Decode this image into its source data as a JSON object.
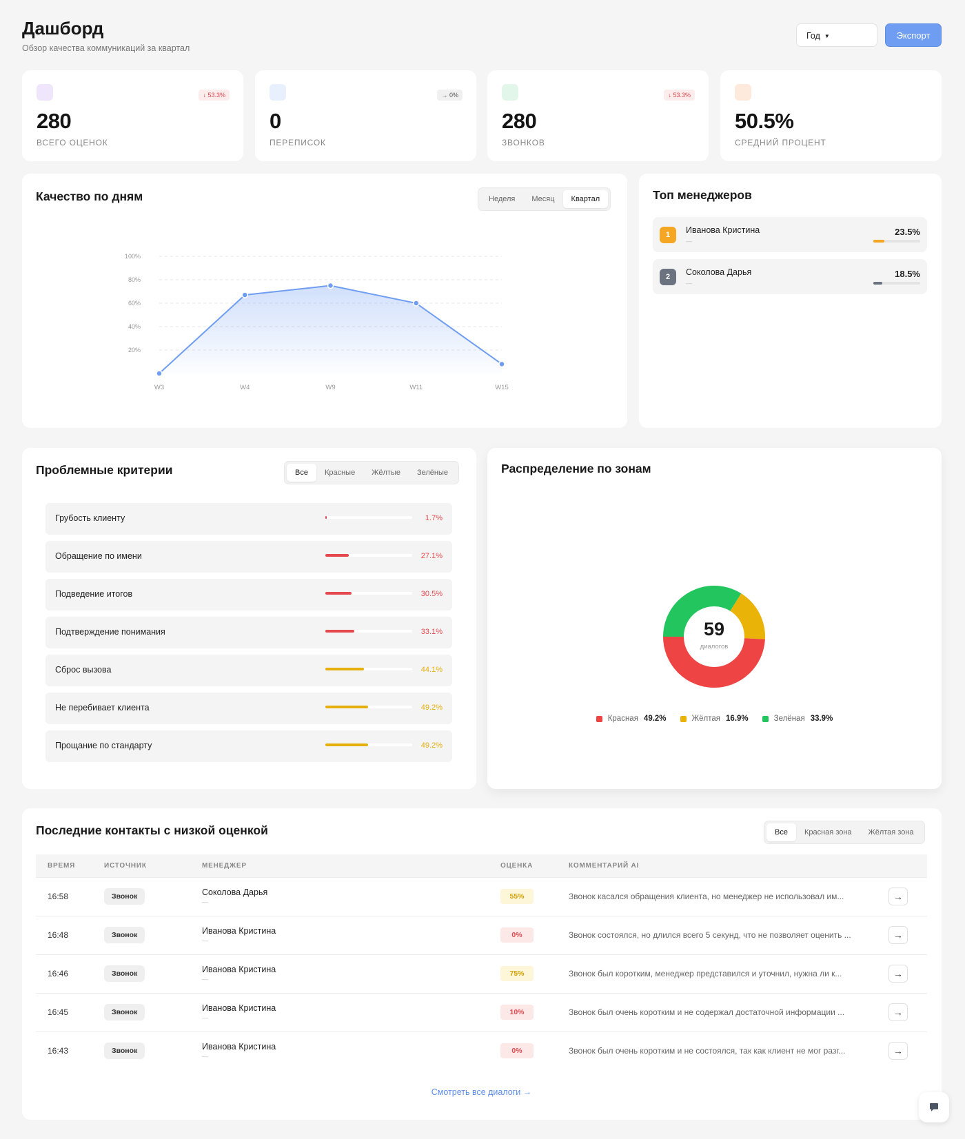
{
  "header": {
    "title": "Дашборд",
    "subtitle": "Обзор качества коммуникаций за квартал",
    "period": "Год",
    "export_label": "Экспорт"
  },
  "stats": [
    {
      "value": "280",
      "label": "ВСЕГО ОЦЕНОК",
      "badge": "↓ 53.3%",
      "icon_color": "#efe6fb"
    },
    {
      "value": "0",
      "label": "ПЕРЕПИСОК",
      "badge": "→ 0%",
      "icon_color": "#e8f0fd"
    },
    {
      "value": "280",
      "label": "ЗВОНКОВ",
      "badge": "↓ 53.3%",
      "icon_color": "#e3f6ea"
    },
    {
      "value": "50.5%",
      "label": "СРЕДНИЙ ПРОЦЕНТ",
      "badge": "",
      "icon_color": "#fdeadd"
    }
  ],
  "quality": {
    "title": "Качество по дням",
    "tabs": [
      "Неделя",
      "Месяц",
      "Квартал"
    ],
    "active_tab": "Квартал"
  },
  "chart_data": {
    "type": "area",
    "title": "Качество по дням",
    "x": [
      "W3",
      "W4",
      "W9",
      "W11",
      "W15"
    ],
    "y_ticks": [
      "100%",
      "80%",
      "60%",
      "40%",
      "20%"
    ],
    "series": [
      {
        "values": [
          0,
          67,
          75,
          60,
          8
        ]
      }
    ],
    "ylim": [
      0,
      100
    ],
    "grid": true,
    "color": "#6f9df2"
  },
  "top_managers": {
    "title": "Топ менеджеров",
    "items": [
      {
        "rank": "1",
        "name": "Иванова Кристина",
        "sub": "—",
        "pct": "23.5%",
        "fill": 0.235,
        "color": "#f5a623"
      },
      {
        "rank": "2",
        "name": "Соколова Дарья",
        "sub": "—",
        "pct": "18.5%",
        "fill": 0.185,
        "color": "#6b7280"
      }
    ]
  },
  "criteria": {
    "title": "Проблемные критерии",
    "tabs": [
      "Все",
      "Красные",
      "Жёлтые",
      "Зелёные"
    ],
    "active_tab": "Все",
    "items": [
      {
        "name": "Грубость клиенту",
        "pct": "1.7%",
        "value": 1.7,
        "color": "#e5484d"
      },
      {
        "name": "Обращение по имени",
        "pct": "27.1%",
        "value": 27.1,
        "color": "#e5484d"
      },
      {
        "name": "Подведение итогов",
        "pct": "30.5%",
        "value": 30.5,
        "color": "#e5484d"
      },
      {
        "name": "Подтверждение понимания",
        "pct": "33.1%",
        "value": 33.1,
        "color": "#e5484d"
      },
      {
        "name": "Сброс вызова",
        "pct": "44.1%",
        "value": 44.1,
        "color": "#e6b00c"
      },
      {
        "name": "Не перебивает клиента",
        "pct": "49.2%",
        "value": 49.2,
        "color": "#e6b00c"
      },
      {
        "name": "Прощание по стандарту",
        "pct": "49.2%",
        "value": 49.2,
        "color": "#e6b00c"
      }
    ]
  },
  "zones": {
    "title": "Распределение по зонам",
    "center_value": "59",
    "center_label": "диалогов",
    "items": [
      {
        "name": "Красная",
        "pct": "49.2%",
        "value": 49.2,
        "color": "#ef4444"
      },
      {
        "name": "Жёлтая",
        "pct": "16.9%",
        "value": 16.9,
        "color": "#eab308"
      },
      {
        "name": "Зелёная",
        "pct": "33.9%",
        "value": 33.9,
        "color": "#22c55e"
      }
    ]
  },
  "contacts": {
    "title": "Последние контакты с низкой оценкой",
    "tabs": [
      "Все",
      "Красная зона",
      "Жёлтая зона"
    ],
    "active_tab": "Все",
    "columns": [
      "ВРЕМЯ",
      "ИСТОЧНИК",
      "МЕНЕДЖЕР",
      "ОЦЕНКА",
      "КОММЕНТАРИЙ AI"
    ],
    "rows": [
      {
        "time": "16:58",
        "source": "Звонок",
        "manager": "Соколова Дарья",
        "sub": "—",
        "score": "55%",
        "zone": "yellow",
        "comment": "Звонок касался обращения клиента, но менеджер не использовал им..."
      },
      {
        "time": "16:48",
        "source": "Звонок",
        "manager": "Иванова Кристина",
        "sub": "—",
        "score": "0%",
        "zone": "red",
        "comment": "Звонок состоялся, но длился всего 5 секунд, что не позволяет оценить ..."
      },
      {
        "time": "16:46",
        "source": "Звонок",
        "manager": "Иванова Кристина",
        "sub": "—",
        "score": "75%",
        "zone": "yellow",
        "comment": "Звонок был коротким, менеджер представился и уточнил, нужна ли к..."
      },
      {
        "time": "16:45",
        "source": "Звонок",
        "manager": "Иванова Кристина",
        "sub": "—",
        "score": "10%",
        "zone": "red",
        "comment": "Звонок был очень коротким и не содержал достаточной информации ..."
      },
      {
        "time": "16:43",
        "source": "Звонок",
        "manager": "Иванова Кристина",
        "sub": "—",
        "score": "0%",
        "zone": "red",
        "comment": "Звонок был очень коротким и не состоялся, так как клиент не мог разг..."
      }
    ],
    "view_all": "Смотреть все диалоги →",
    "row_action_icon": "arrow-right-icon"
  },
  "colors": {
    "accent": "#6f9df2",
    "red": "#e5484d",
    "yellow": "#e6b00c",
    "score_yellow_bg": "#fdf6d8",
    "score_yellow_fg": "#d4a106",
    "score_red_bg": "#fde8e8",
    "score_red_fg": "#e0474f"
  },
  "chat_fab_icon": "chat-icon"
}
